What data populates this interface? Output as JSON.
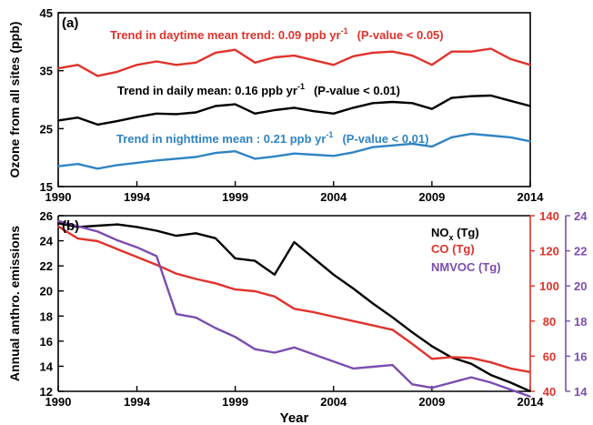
{
  "chart_data": [
    {
      "type": "line",
      "panel_label": "(a)",
      "ylabel": "Ozone from all sites (ppb)",
      "xlim": [
        1990,
        2014
      ],
      "ylim": [
        15,
        45
      ],
      "xticks": [
        1990,
        1994,
        1999,
        2004,
        2009,
        2014
      ],
      "yticks": [
        15,
        25,
        35,
        45
      ],
      "x": [
        1990,
        1991,
        1992,
        1993,
        1994,
        1995,
        1996,
        1997,
        1998,
        1999,
        2000,
        2001,
        2002,
        2003,
        2004,
        2005,
        2006,
        2007,
        2008,
        2009,
        2010,
        2011,
        2012,
        2013,
        2014
      ],
      "series": [
        {
          "color": "#e0332c",
          "values": [
            35.4,
            36.0,
            34.1,
            34.8,
            36.0,
            36.6,
            36.0,
            36.4,
            38.1,
            38.6,
            36.4,
            37.3,
            37.6,
            36.8,
            36.0,
            37.5,
            38.1,
            38.3,
            37.6,
            36.0,
            38.3,
            38.3,
            38.8,
            37.0,
            36.0
          ],
          "annotation": {
            "prefix": "Trend in daytime mean trend: 0.09 ppb yr",
            "sup": "-1",
            "suffix": "(P-value < 0.05)"
          }
        },
        {
          "color": "#000000",
          "values": [
            26.4,
            26.9,
            25.7,
            26.3,
            27.0,
            27.6,
            27.5,
            27.8,
            28.9,
            29.2,
            27.6,
            28.2,
            28.6,
            28.0,
            27.6,
            28.6,
            29.4,
            29.6,
            29.4,
            28.4,
            30.3,
            30.6,
            30.7,
            29.8,
            28.9
          ],
          "annotation": {
            "prefix": "Trend in daily mean: 0.16 ppb yr",
            "sup": "-1",
            "suffix": "(P-value < 0.01)"
          }
        },
        {
          "color": "#2f84c4",
          "values": [
            18.5,
            18.9,
            18.1,
            18.7,
            19.1,
            19.5,
            19.8,
            20.1,
            20.8,
            21.1,
            19.8,
            20.2,
            20.7,
            20.5,
            20.3,
            20.9,
            21.8,
            22.1,
            22.4,
            21.9,
            23.5,
            24.1,
            23.8,
            23.5,
            22.8
          ],
          "annotation": {
            "prefix": "Trend in nighttime mean : 0.21 ppb yr",
            "sup": "-1",
            "suffix": "(P-value < 0.01)"
          }
        }
      ]
    },
    {
      "type": "line",
      "panel_label": "(b)",
      "ylabel": "Annual anthro. emissions",
      "xlabel": "Year",
      "xlim": [
        1990,
        2014
      ],
      "xticks": [
        1990,
        1994,
        1999,
        2004,
        2009,
        2014
      ],
      "legend_position": "top-right",
      "x": [
        1990,
        1991,
        1992,
        1993,
        1994,
        1995,
        1996,
        1997,
        1998,
        1999,
        2000,
        2001,
        2002,
        2003,
        2004,
        2005,
        2006,
        2007,
        2008,
        2009,
        2010,
        2011,
        2012,
        2013,
        2014
      ],
      "axes": {
        "left": {
          "color": "#000000",
          "ylim": [
            12,
            26
          ],
          "ticks": [
            12,
            14,
            16,
            18,
            20,
            22,
            24,
            26
          ]
        },
        "right1": {
          "color": "#e0332c",
          "ylim": [
            40,
            140
          ],
          "ticks": [
            40,
            60,
            80,
            100,
            120,
            140
          ]
        },
        "right2": {
          "color": "#7c4cb0",
          "ylim": [
            14,
            24
          ],
          "ticks": [
            14,
            16,
            18,
            20,
            22,
            24
          ]
        }
      },
      "series": [
        {
          "name": "NO",
          "name_sub": "x",
          "name_suffix": " (Tg)",
          "axis": "left",
          "color": "#000000",
          "values": [
            25.4,
            25.1,
            25.2,
            25.3,
            25.1,
            24.8,
            24.4,
            24.6,
            24.2,
            22.6,
            22.4,
            21.3,
            23.9,
            22.6,
            21.3,
            20.2,
            19.0,
            17.9,
            16.7,
            15.6,
            14.7,
            14.2,
            13.3,
            12.7,
            12.0
          ]
        },
        {
          "name": "CO (Tg)",
          "axis": "right1",
          "color": "#e0332c",
          "values": [
            134.0,
            127.0,
            125.5,
            121.0,
            116.5,
            112.0,
            107.0,
            104.0,
            101.5,
            98.0,
            97.0,
            94.0,
            87.0,
            85.0,
            82.5,
            80.0,
            77.5,
            75.0,
            67.0,
            58.5,
            59.5,
            59.0,
            56.5,
            53.0,
            51.0
          ]
        },
        {
          "name": "NMVOC (Tg)",
          "axis": "right2",
          "color": "#7c4cb0",
          "values": [
            23.7,
            23.4,
            23.1,
            22.6,
            22.2,
            21.7,
            18.4,
            18.2,
            17.6,
            17.1,
            16.4,
            16.2,
            16.5,
            16.1,
            15.7,
            15.3,
            15.4,
            15.5,
            14.4,
            14.2,
            14.5,
            14.8,
            14.5,
            14.1,
            13.7
          ]
        }
      ]
    }
  ]
}
